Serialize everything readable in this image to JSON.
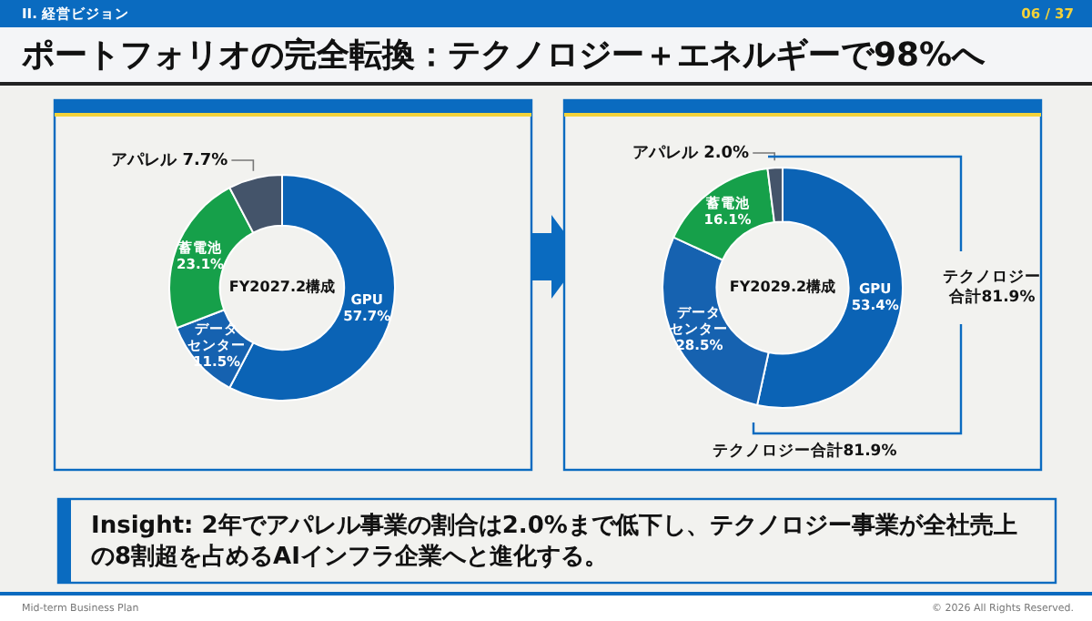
{
  "chart_data": [
    {
      "type": "donut",
      "title": "ポートフォリオの完全転換：テクノロジー＋エネルギーで98%へ",
      "subtitle": "FY2027.2構成",
      "categories": [
        "GPU",
        "データセンター",
        "蓄電池",
        "アパレル"
      ],
      "values": [
        57.7,
        11.5,
        23.1,
        7.7
      ],
      "value_labels": [
        "57.7%",
        "11.5%",
        "23.1%",
        "7.7%"
      ],
      "colors": [
        "#0b63b5",
        "#1662b0",
        "#16a04a",
        "#44546a"
      ]
    },
    {
      "type": "donut",
      "subtitle": "FY2029.2構成",
      "annotations": [
        "テクノロジー合計81.9%",
        "テクノロジー合計81.9%"
      ],
      "categories": [
        "GPU",
        "データセンター",
        "蓄電池",
        "アパレル"
      ],
      "values": [
        53.4,
        28.5,
        16.1,
        2.0
      ],
      "value_labels": [
        "53.4%",
        "28.5%",
        "16.1%",
        "2.0%"
      ],
      "colors": [
        "#0b63b5",
        "#1662b0",
        "#16a04a",
        "#44546a"
      ]
    },
    {
      "type": "other",
      "annotations": [
        "Insight: 2年でアパレル事業の割合は2.0%まで低下し、テクノロジー事業が全社売上の8割超を占めるAIインフラ企業へと進化する。",
        "Mid-term Business Plan",
        "© 2026 All Rights Reserved.",
        "II. 経営ビジョン",
        "06 / 37"
      ]
    }
  ]
}
